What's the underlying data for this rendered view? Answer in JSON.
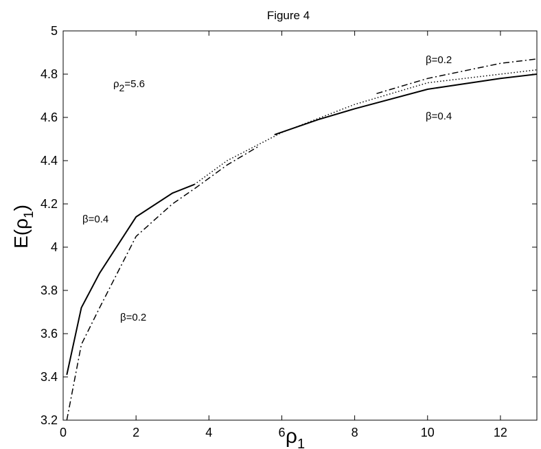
{
  "chart_data": {
    "type": "line",
    "title": "Figure 4",
    "xlabel": [
      "ρ",
      "1"
    ],
    "ylabel": [
      "E(ρ",
      "1",
      ")"
    ],
    "xlim": [
      0,
      13
    ],
    "xticks": [
      0,
      2,
      4,
      6,
      8,
      10,
      12
    ],
    "ylim": [
      3.2,
      5
    ],
    "yticks": [
      3.2,
      3.4,
      3.6,
      3.8,
      4,
      4.2,
      4.4,
      4.6,
      4.8,
      5
    ],
    "grid": false,
    "series": [
      {
        "style": "solid",
        "color": "#000000",
        "x": [
          0.1,
          0.5,
          1,
          2,
          3,
          3.6,
          4.7,
          5.8,
          7,
          8,
          10,
          12,
          13
        ],
        "values": [
          3.41,
          3.72,
          3.88,
          4.14,
          4.25,
          4.29,
          null,
          4.52,
          4.59,
          4.64,
          4.73,
          4.78,
          4.8
        ]
      },
      {
        "style": "dashdot",
        "color": "#000000",
        "x": [
          0.1,
          0.5,
          1,
          2,
          3,
          3.6,
          4.5,
          5.4,
          7,
          8.6,
          10,
          12,
          13
        ],
        "values": [
          3.2,
          3.55,
          3.72,
          4.05,
          4.2,
          4.27,
          4.38,
          4.47,
          null,
          4.71,
          4.78,
          4.85,
          4.87
        ]
      },
      {
        "style": "dotted",
        "color": "#000000",
        "x": [
          3.6,
          4.5,
          6,
          8,
          10,
          12,
          13
        ],
        "values": [
          4.29,
          4.4,
          4.53,
          4.66,
          4.76,
          4.8,
          4.82
        ]
      }
    ],
    "annotations": [
      [
        "β=0.2"
      ],
      [
        "β=0.4"
      ],
      [
        "β=0.4"
      ],
      [
        "β=0.2"
      ],
      [
        "ρ",
        "2",
        "=5.6"
      ]
    ]
  }
}
